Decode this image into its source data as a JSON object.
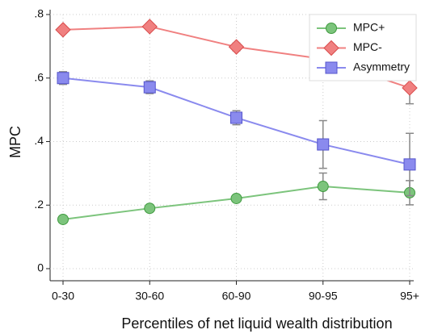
{
  "chart_data": {
    "type": "line",
    "x_label": "Percentiles of net liquid wealth distribution",
    "y_label": "MPC",
    "categories": [
      "0-30",
      "30-60",
      "60-90",
      "90-95",
      "95+"
    ],
    "ylim": [
      0,
      0.8
    ],
    "yticks": [
      0,
      {
        "value": 0.2,
        "label": ".2"
      },
      {
        "value": 0.4,
        "label": ".4"
      },
      {
        "value": 0.6,
        "label": ".6"
      },
      {
        "value": 0.8,
        "label": ".8"
      }
    ],
    "grid": true,
    "legend": "top-right",
    "series": [
      {
        "name": "MPC+",
        "color": "#7cc47c",
        "marker": "circle",
        "values": [
          0.155,
          0.19,
          0.221,
          0.259,
          0.239
        ],
        "errors": [
          0.008,
          0.008,
          0.008,
          0.042,
          0.038
        ]
      },
      {
        "name": "MPC-",
        "color": "#f08080",
        "marker": "diamond",
        "values": [
          0.752,
          0.762,
          0.698,
          0.66,
          0.569
        ],
        "errors": [
          0.01,
          0.01,
          0.012,
          0.03,
          0.05
        ]
      },
      {
        "name": "Asymmetry",
        "color": "#8a8aee",
        "marker": "square",
        "values": [
          0.6,
          0.571,
          0.475,
          0.391,
          0.328
        ],
        "errors": [
          0.02,
          0.02,
          0.022,
          0.075,
          0.098
        ]
      }
    ]
  }
}
